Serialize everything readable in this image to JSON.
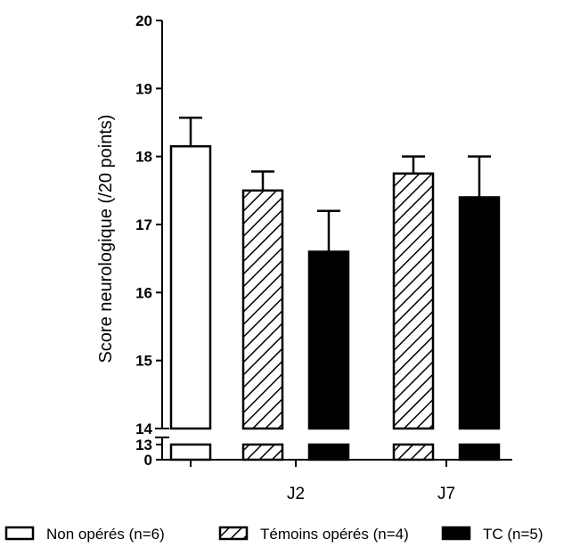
{
  "chart_data": {
    "type": "bar",
    "ylabel": "Score neurologique (/20 points)",
    "xlabel": "",
    "ylim": [
      14,
      20
    ],
    "broken_axis": {
      "lower_ticks": [
        "0",
        "13"
      ],
      "break_between": [
        13,
        14
      ]
    },
    "y_ticks": [
      "20",
      "19",
      "18",
      "17",
      "16",
      "15",
      "14"
    ],
    "categories": [
      "",
      "J2",
      "J7"
    ],
    "series": [
      {
        "name": "Non opérés (n=6)",
        "pattern": "empty",
        "values": [
          18.15,
          null,
          null
        ],
        "errors": [
          0.42,
          null,
          null
        ]
      },
      {
        "name": "Témoins opérés (n=4)",
        "pattern": "hatched",
        "values": [
          null,
          17.5,
          17.75
        ],
        "errors": [
          null,
          0.28,
          0.25
        ]
      },
      {
        "name": "TC (n=5)",
        "pattern": "solid",
        "values": [
          null,
          16.6,
          17.4
        ],
        "errors": [
          null,
          0.6,
          0.6
        ]
      }
    ],
    "legend": "bottom",
    "grid": false,
    "colors": {
      "empty": "#ffffff",
      "solid": "#000000",
      "stroke": "#000000"
    }
  }
}
